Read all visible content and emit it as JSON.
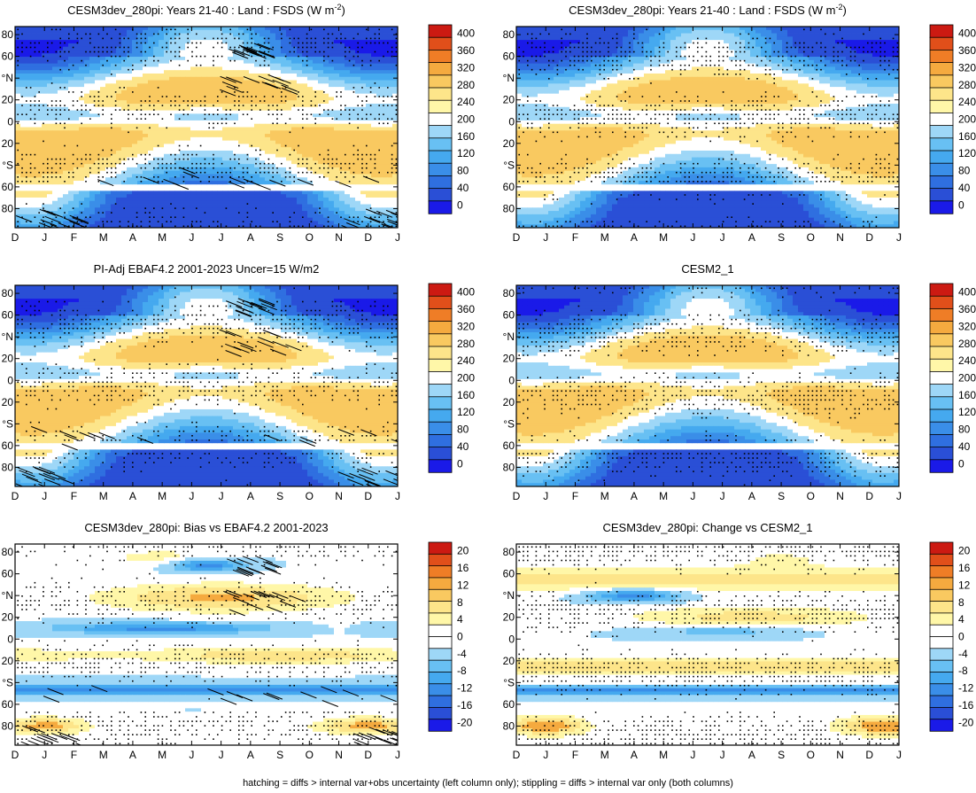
{
  "footer_note": "hatching = diffs > internal var+obs uncertainty (left column only); stippling = diffs > internal var only (both columns)",
  "palettes": {
    "abs": [
      "#1a1ae8",
      "#2a4fd6",
      "#2f6fe0",
      "#3a8ee8",
      "#45a9ef",
      "#68c0f3",
      "#9ed7f7",
      "#ffffff",
      "#fff7a8",
      "#fde58a",
      "#f9c960",
      "#f5aa3f",
      "#ef7d26",
      "#e14f1a",
      "#cc1a12"
    ],
    "diff": [
      "#1a1ae8",
      "#2a4fd6",
      "#2f6fe0",
      "#3a8ee8",
      "#45a9ef",
      "#68c0f3",
      "#9ed7f7",
      "#ffffff",
      "#ffffff",
      "#fff7a8",
      "#fde58a",
      "#f9c960",
      "#f5aa3f",
      "#ef7d26",
      "#e14f1a",
      "#cc1a12"
    ]
  },
  "chart_data": [
    {
      "type": "heatmap",
      "title": "CESM3dev_280pi: Years 21-40 : Land : FSDS (W m",
      "title_sup": "-2",
      "title_end": ")",
      "x_ticks": [
        "D",
        "J",
        "F",
        "M",
        "A",
        "M",
        "J",
        "J",
        "A",
        "S",
        "O",
        "N",
        "D",
        "J"
      ],
      "y_ticks": [
        "80",
        "60",
        "°N",
        "20",
        "0",
        "20",
        "°S",
        "60",
        "80"
      ],
      "y_values": [
        80,
        60,
        40,
        20,
        0,
        -20,
        -40,
        -60,
        -80
      ],
      "colorbar_labels": [
        "400",
        "360",
        "320",
        "280",
        "240",
        "200",
        "160",
        "120",
        "80",
        "40",
        "0"
      ],
      "palette": "abs",
      "field": "abs",
      "hatched": true,
      "stipple_density": 0.55
    },
    {
      "type": "heatmap",
      "title": "CESM3dev_280pi: Years 21-40 : Land : FSDS (W m",
      "title_sup": "-2",
      "title_end": ")",
      "x_ticks": [
        "D",
        "J",
        "F",
        "M",
        "A",
        "M",
        "J",
        "J",
        "A",
        "S",
        "O",
        "N",
        "D",
        "J"
      ],
      "y_ticks": [
        "80",
        "60",
        "°N",
        "20",
        "0",
        "20",
        "°S",
        "60",
        "80"
      ],
      "y_values": [
        80,
        60,
        40,
        20,
        0,
        -20,
        -40,
        -60,
        -80
      ],
      "colorbar_labels": [
        "400",
        "360",
        "320",
        "280",
        "240",
        "200",
        "160",
        "120",
        "80",
        "40",
        "0"
      ],
      "palette": "abs",
      "field": "abs",
      "hatched": false,
      "stipple_density": 0.6
    },
    {
      "type": "heatmap",
      "title": "PI-Adj EBAF4.2 2001-2023 Uncer=15 W/m2",
      "x_ticks": [
        "D",
        "J",
        "F",
        "M",
        "A",
        "M",
        "J",
        "J",
        "A",
        "S",
        "O",
        "N",
        "D",
        "J"
      ],
      "y_ticks": [
        "80",
        "60",
        "°N",
        "20",
        "0",
        "20",
        "°S",
        "60",
        "80"
      ],
      "y_values": [
        80,
        60,
        40,
        20,
        0,
        -20,
        -40,
        -60,
        -80
      ],
      "colorbar_labels": [
        "400",
        "360",
        "320",
        "280",
        "240",
        "200",
        "160",
        "120",
        "80",
        "40",
        "0"
      ],
      "palette": "abs",
      "field": "abs",
      "hatched": true,
      "stipple_density": 0.55
    },
    {
      "type": "heatmap",
      "title": "CESM2_1",
      "x_ticks": [
        "D",
        "J",
        "F",
        "M",
        "A",
        "M",
        "J",
        "J",
        "A",
        "S",
        "O",
        "N",
        "D",
        "J"
      ],
      "y_ticks": [
        "80",
        "60",
        "°N",
        "20",
        "0",
        "20",
        "°S",
        "60",
        "80"
      ],
      "y_values": [
        80,
        60,
        40,
        20,
        0,
        -20,
        -40,
        -60,
        -80
      ],
      "colorbar_labels": [
        "400",
        "360",
        "320",
        "280",
        "240",
        "200",
        "160",
        "120",
        "80",
        "40",
        "0"
      ],
      "palette": "abs",
      "field": "abs",
      "hatched": false,
      "stipple_density": 0.6
    },
    {
      "type": "heatmap",
      "title": "CESM3dev_280pi: Bias vs EBAF4.2 2001-2023",
      "x_ticks": [
        "D",
        "J",
        "F",
        "M",
        "A",
        "M",
        "J",
        "J",
        "A",
        "S",
        "O",
        "N",
        "D",
        "J"
      ],
      "y_ticks": [
        "80",
        "60",
        "°N",
        "20",
        "0",
        "20",
        "°S",
        "60",
        "80"
      ],
      "y_values": [
        80,
        60,
        40,
        20,
        0,
        -20,
        -40,
        -60,
        -80
      ],
      "colorbar_labels": [
        "20",
        "16",
        "12",
        "8",
        "4",
        "0",
        "-4",
        "-8",
        "-12",
        "-16",
        "-20"
      ],
      "palette": "diff",
      "field": "bias",
      "hatched": true,
      "stipple_density": 0.5
    },
    {
      "type": "heatmap",
      "title": "CESM3dev_280pi: Change vs CESM2_1",
      "x_ticks": [
        "D",
        "J",
        "F",
        "M",
        "A",
        "M",
        "J",
        "J",
        "A",
        "S",
        "O",
        "N",
        "D",
        "J"
      ],
      "y_ticks": [
        "80",
        "60",
        "°N",
        "20",
        "0",
        "20",
        "°S",
        "60",
        "80"
      ],
      "y_values": [
        80,
        60,
        40,
        20,
        0,
        -20,
        -40,
        -60,
        -80
      ],
      "colorbar_labels": [
        "20",
        "16",
        "12",
        "8",
        "4",
        "0",
        "-4",
        "-8",
        "-12",
        "-16",
        "-20"
      ],
      "palette": "diff",
      "field": "change",
      "hatched": false,
      "stipple_density": 0.65
    }
  ]
}
